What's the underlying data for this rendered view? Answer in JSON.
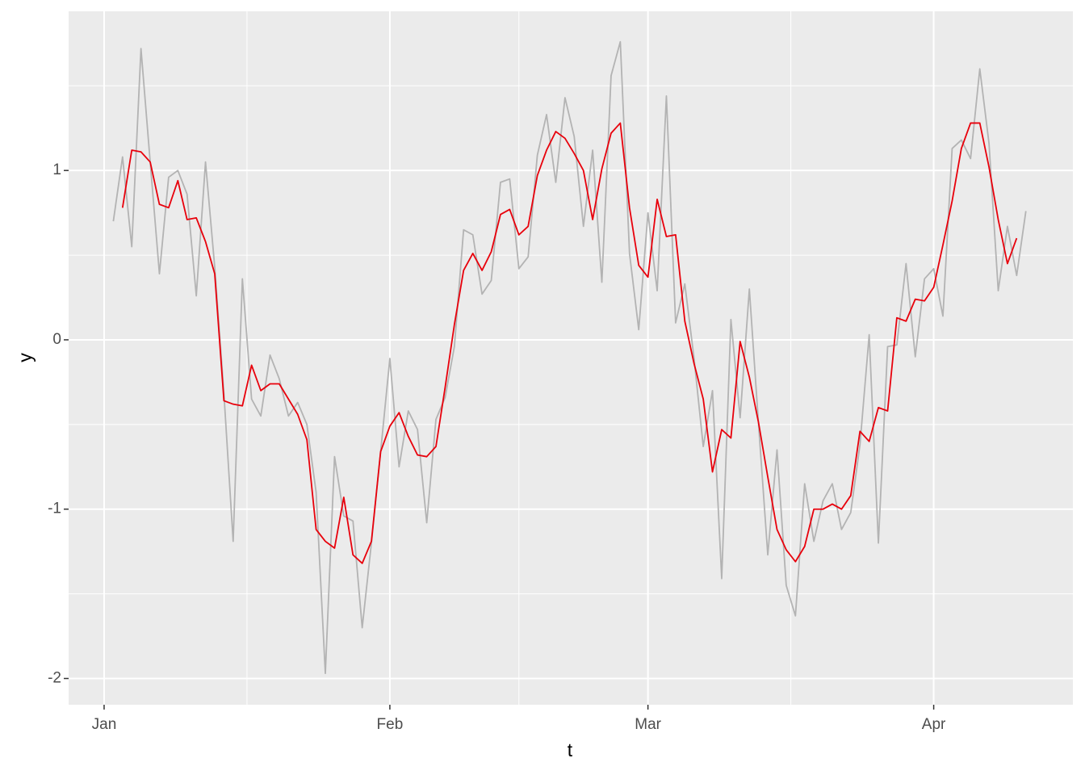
{
  "chart_data": {
    "type": "line",
    "x_label": "t",
    "y_label": "y",
    "x": [
      2,
      3,
      4,
      5,
      6,
      7,
      8,
      9,
      10,
      11,
      12,
      13,
      14,
      15,
      16,
      17,
      18,
      19,
      20,
      21,
      22,
      23,
      24,
      25,
      26,
      27,
      28,
      29,
      30,
      31,
      32,
      33,
      34,
      35,
      36,
      37,
      38,
      39,
      40,
      41,
      42,
      43,
      44,
      45,
      46,
      47,
      48,
      49,
      50,
      51,
      52,
      53,
      54,
      55,
      56,
      57,
      58,
      59,
      60,
      61,
      62,
      63,
      64,
      65,
      66,
      67,
      68,
      69,
      70,
      71,
      72,
      73,
      74,
      75,
      76,
      77,
      78,
      79,
      80,
      81,
      82,
      83,
      84,
      85,
      86,
      87,
      88,
      89,
      90,
      91,
      92,
      93,
      94,
      95,
      96,
      97,
      98,
      99,
      100,
      101
    ],
    "series": [
      {
        "color": "#b3b3b3",
        "values": [
          0.7,
          1.08,
          0.55,
          1.72,
          1.05,
          0.39,
          0.96,
          1.0,
          0.86,
          0.26,
          1.05,
          0.43,
          -0.32,
          -1.19,
          0.36,
          -0.35,
          -0.45,
          -0.09,
          -0.23,
          -0.45,
          -0.37,
          -0.5,
          -0.9,
          -1.97,
          -0.69,
          -1.04,
          -1.07,
          -1.7,
          -1.2,
          -0.66,
          -0.11,
          -0.75,
          -0.42,
          -0.53,
          -1.08,
          -0.47,
          -0.34,
          -0.04,
          0.65,
          0.62,
          0.27,
          0.35,
          0.93,
          0.95,
          0.42,
          0.49,
          1.09,
          1.33,
          0.93,
          1.43,
          1.2,
          0.67,
          1.12,
          0.34,
          1.56,
          1.76,
          0.51,
          0.06,
          0.75,
          0.29,
          1.44,
          0.1,
          0.33,
          -0.11,
          -0.63,
          -0.3,
          -1.41,
          0.12,
          -0.46,
          0.3,
          -0.5,
          -1.27,
          -0.65,
          -1.45,
          -1.63,
          -0.85,
          -1.19,
          -0.95,
          -0.85,
          -1.12,
          -1.02,
          -0.62,
          0.03,
          -1.2,
          -0.04,
          -0.03,
          0.45,
          -0.1,
          0.36,
          0.42,
          0.14,
          1.13,
          1.18,
          1.07,
          1.6,
          1.16,
          0.29,
          0.67,
          0.38,
          0.76
        ]
      },
      {
        "color": "#e8000b",
        "values": [
          null,
          0.78,
          1.12,
          1.11,
          1.05,
          0.8,
          0.78,
          0.94,
          0.71,
          0.72,
          0.58,
          0.39,
          -0.36,
          -0.38,
          -0.39,
          -0.15,
          -0.3,
          -0.26,
          -0.26,
          -0.35,
          -0.44,
          -0.59,
          -1.12,
          -1.19,
          -1.23,
          -0.93,
          -1.27,
          -1.32,
          -1.19,
          -0.66,
          -0.51,
          -0.43,
          -0.57,
          -0.68,
          -0.69,
          -0.63,
          -0.28,
          0.09,
          0.41,
          0.51,
          0.41,
          0.52,
          0.74,
          0.77,
          0.62,
          0.67,
          0.97,
          1.12,
          1.23,
          1.19,
          1.1,
          1.0,
          0.71,
          1.01,
          1.22,
          1.28,
          0.78,
          0.44,
          0.37,
          0.83,
          0.61,
          0.62,
          0.11,
          -0.14,
          -0.35,
          -0.78,
          -0.53,
          -0.58,
          -0.01,
          -0.22,
          -0.49,
          -0.81,
          -1.12,
          -1.24,
          -1.31,
          -1.22,
          -1.0,
          -1.0,
          -0.97,
          -1.0,
          -0.92,
          -0.54,
          -0.6,
          -0.4,
          -0.42,
          0.13,
          0.11,
          0.24,
          0.23,
          0.31,
          0.56,
          0.82,
          1.13,
          1.28,
          1.28,
          1.02,
          0.71,
          0.45,
          0.6,
          null
        ]
      }
    ],
    "xlim": [
      -2.85,
      106.1
    ],
    "xticks": [
      {
        "value": 1,
        "label": "Jan"
      },
      {
        "value": 32,
        "label": "Feb"
      },
      {
        "value": 60,
        "label": "Mar"
      },
      {
        "value": 91,
        "label": "Apr"
      }
    ],
    "ylim": [
      -2.155,
      1.94
    ],
    "yticks": [
      -2,
      -1,
      0,
      1
    ],
    "grid": true,
    "panel_color": "#ebebeb"
  }
}
